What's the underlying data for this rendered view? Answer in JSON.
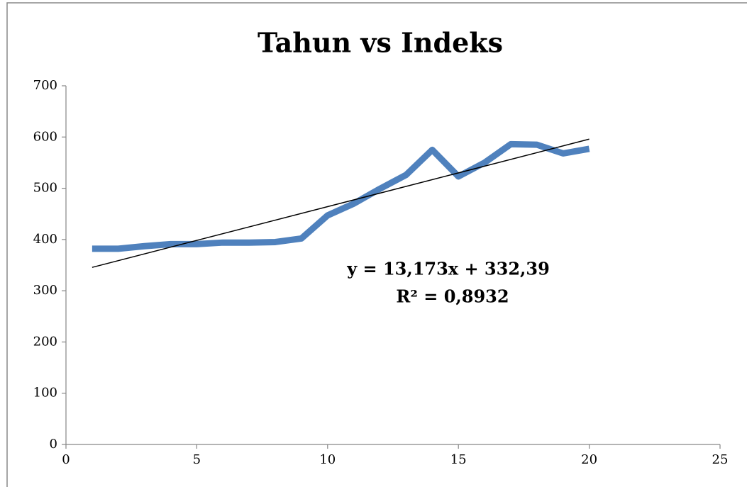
{
  "chart_data": {
    "type": "line",
    "title": "Tahun vs Indeks",
    "x": [
      1,
      2,
      3,
      4,
      5,
      6,
      7,
      8,
      9,
      10,
      11,
      12,
      13,
      14,
      15,
      16,
      17,
      18,
      19,
      20
    ],
    "series": [
      {
        "name": "Indeks",
        "color": "#4f81bd",
        "values": [
          382,
          382,
          387,
          391,
          391,
          394,
          394,
          395,
          402,
          447,
          470,
          499,
          526,
          575,
          523,
          550,
          586,
          585,
          568,
          577
        ]
      }
    ],
    "trendline": {
      "slope": 13.173,
      "intercept": 332.39,
      "color": "#000000",
      "label": "y = 13,173x + 332,39",
      "r2_label": "R² = 0,8932"
    },
    "xlim": [
      0,
      25
    ],
    "xticks": [
      0,
      5,
      10,
      15,
      20,
      25
    ],
    "ylim": [
      0,
      700
    ],
    "yticks": [
      0,
      100,
      200,
      300,
      400,
      500,
      600,
      700
    ],
    "legend": false,
    "grid": false
  }
}
